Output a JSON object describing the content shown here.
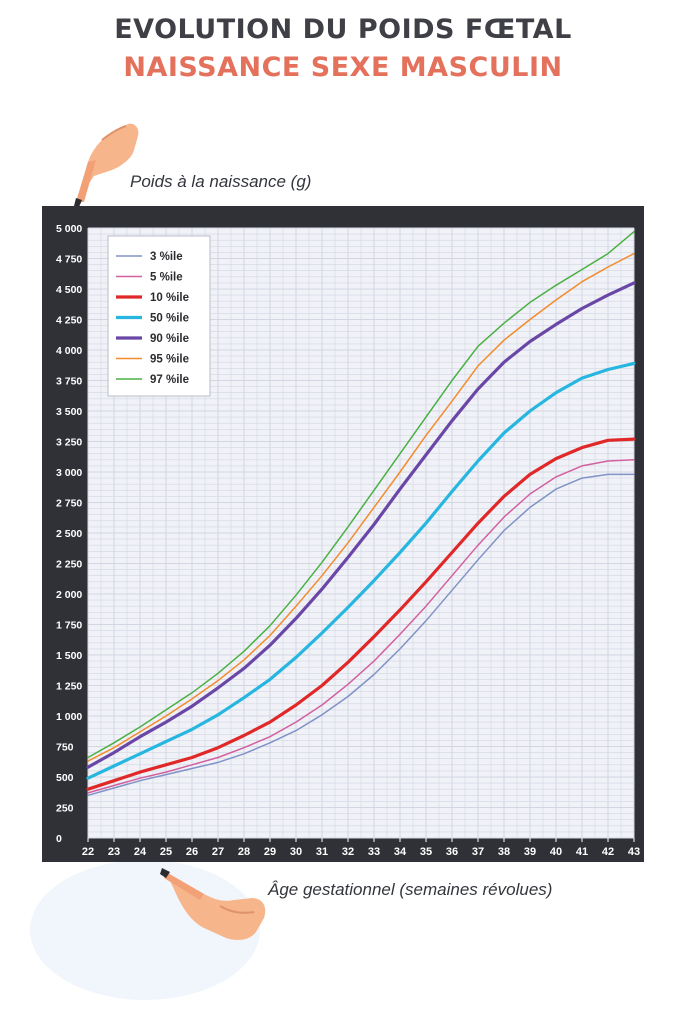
{
  "header": {
    "title": "EVOLUTION DU POIDS FŒTAL",
    "subtitle": "NAISSANCE SEXE MASCULIN"
  },
  "colors": {
    "title": "#3f3f46",
    "subtitle": "#e4715b",
    "frame": "#2f3137",
    "plot_background": "#f1f2f8",
    "grid": "#d3d6e2"
  },
  "icons": [
    "pointing-hand-icon",
    "pointing-hand-icon"
  ],
  "chart_data": {
    "type": "line",
    "title": "",
    "ylabel": "Poids à la naissance (g)",
    "xlabel": "Âge gestationnel (semaines révolues)",
    "xlim": [
      22,
      43
    ],
    "ylim": [
      0,
      5000
    ],
    "grid": true,
    "legend_position": "top-left",
    "x": [
      22,
      23,
      24,
      25,
      26,
      27,
      28,
      29,
      30,
      31,
      32,
      33,
      34,
      35,
      36,
      37,
      38,
      39,
      40,
      41,
      42,
      43
    ],
    "x_tick_labels": [
      "22",
      "23",
      "24",
      "25",
      "26",
      "27",
      "28",
      "29",
      "30",
      "31",
      "32",
      "33",
      "34",
      "35",
      "36",
      "37",
      "38",
      "39",
      "40",
      "41",
      "42",
      "43"
    ],
    "y_ticks": [
      0,
      250,
      500,
      750,
      1000,
      1250,
      1500,
      1750,
      2000,
      2250,
      2500,
      2750,
      3000,
      3250,
      3500,
      3750,
      4000,
      4250,
      4500,
      4750,
      5000
    ],
    "y_tick_labels": [
      "0",
      "250",
      "500",
      "750",
      "1 000",
      "1 250",
      "1 500",
      "1 750",
      "2 000",
      "2 250",
      "2 500",
      "2 750",
      "3 000",
      "3 250",
      "3 500",
      "3 750",
      "4 000",
      "4 250",
      "4 500",
      "4 750",
      "5 000"
    ],
    "series": [
      {
        "name": "3 %ile",
        "color": "#7f93c6",
        "width": 1.5,
        "values": [
          350,
          410,
          470,
          520,
          570,
          620,
          690,
          780,
          880,
          1010,
          1160,
          1340,
          1550,
          1780,
          2030,
          2280,
          2520,
          2710,
          2860,
          2950,
          2980,
          2980
        ]
      },
      {
        "name": "5 %ile",
        "color": "#d2609e",
        "width": 1.5,
        "values": [
          370,
          430,
          490,
          540,
          600,
          660,
          740,
          830,
          950,
          1090,
          1260,
          1450,
          1670,
          1900,
          2150,
          2400,
          2630,
          2820,
          2960,
          3050,
          3090,
          3100
        ]
      },
      {
        "name": "10 %ile",
        "color": "#e02828",
        "width": 3.2,
        "values": [
          400,
          470,
          540,
          600,
          660,
          740,
          840,
          950,
          1090,
          1250,
          1440,
          1650,
          1870,
          2100,
          2340,
          2580,
          2800,
          2980,
          3110,
          3200,
          3260,
          3270
        ]
      },
      {
        "name": "50 %ile",
        "color": "#26b6e0",
        "width": 3.2,
        "values": [
          490,
          590,
          690,
          790,
          890,
          1010,
          1150,
          1300,
          1480,
          1680,
          1890,
          2110,
          2340,
          2580,
          2840,
          3090,
          3320,
          3500,
          3650,
          3770,
          3840,
          3890
        ]
      },
      {
        "name": "90 %ile",
        "color": "#6a47a6",
        "width": 3.2,
        "values": [
          580,
          700,
          830,
          950,
          1080,
          1230,
          1390,
          1580,
          1800,
          2040,
          2300,
          2570,
          2860,
          3140,
          3420,
          3680,
          3900,
          4070,
          4210,
          4340,
          4450,
          4550
        ]
      },
      {
        "name": "95 %ile",
        "color": "#f38b2b",
        "width": 1.5,
        "values": [
          630,
          740,
          870,
          1000,
          1140,
          1290,
          1460,
          1660,
          1900,
          2150,
          2420,
          2710,
          3000,
          3300,
          3580,
          3870,
          4080,
          4250,
          4410,
          4560,
          4680,
          4790
        ]
      },
      {
        "name": "97 %ile",
        "color": "#4ab043",
        "width": 1.5,
        "values": [
          660,
          780,
          910,
          1050,
          1190,
          1350,
          1530,
          1740,
          1990,
          2260,
          2550,
          2850,
          3150,
          3450,
          3750,
          4030,
          4220,
          4390,
          4530,
          4660,
          4790,
          4970
        ]
      }
    ]
  }
}
